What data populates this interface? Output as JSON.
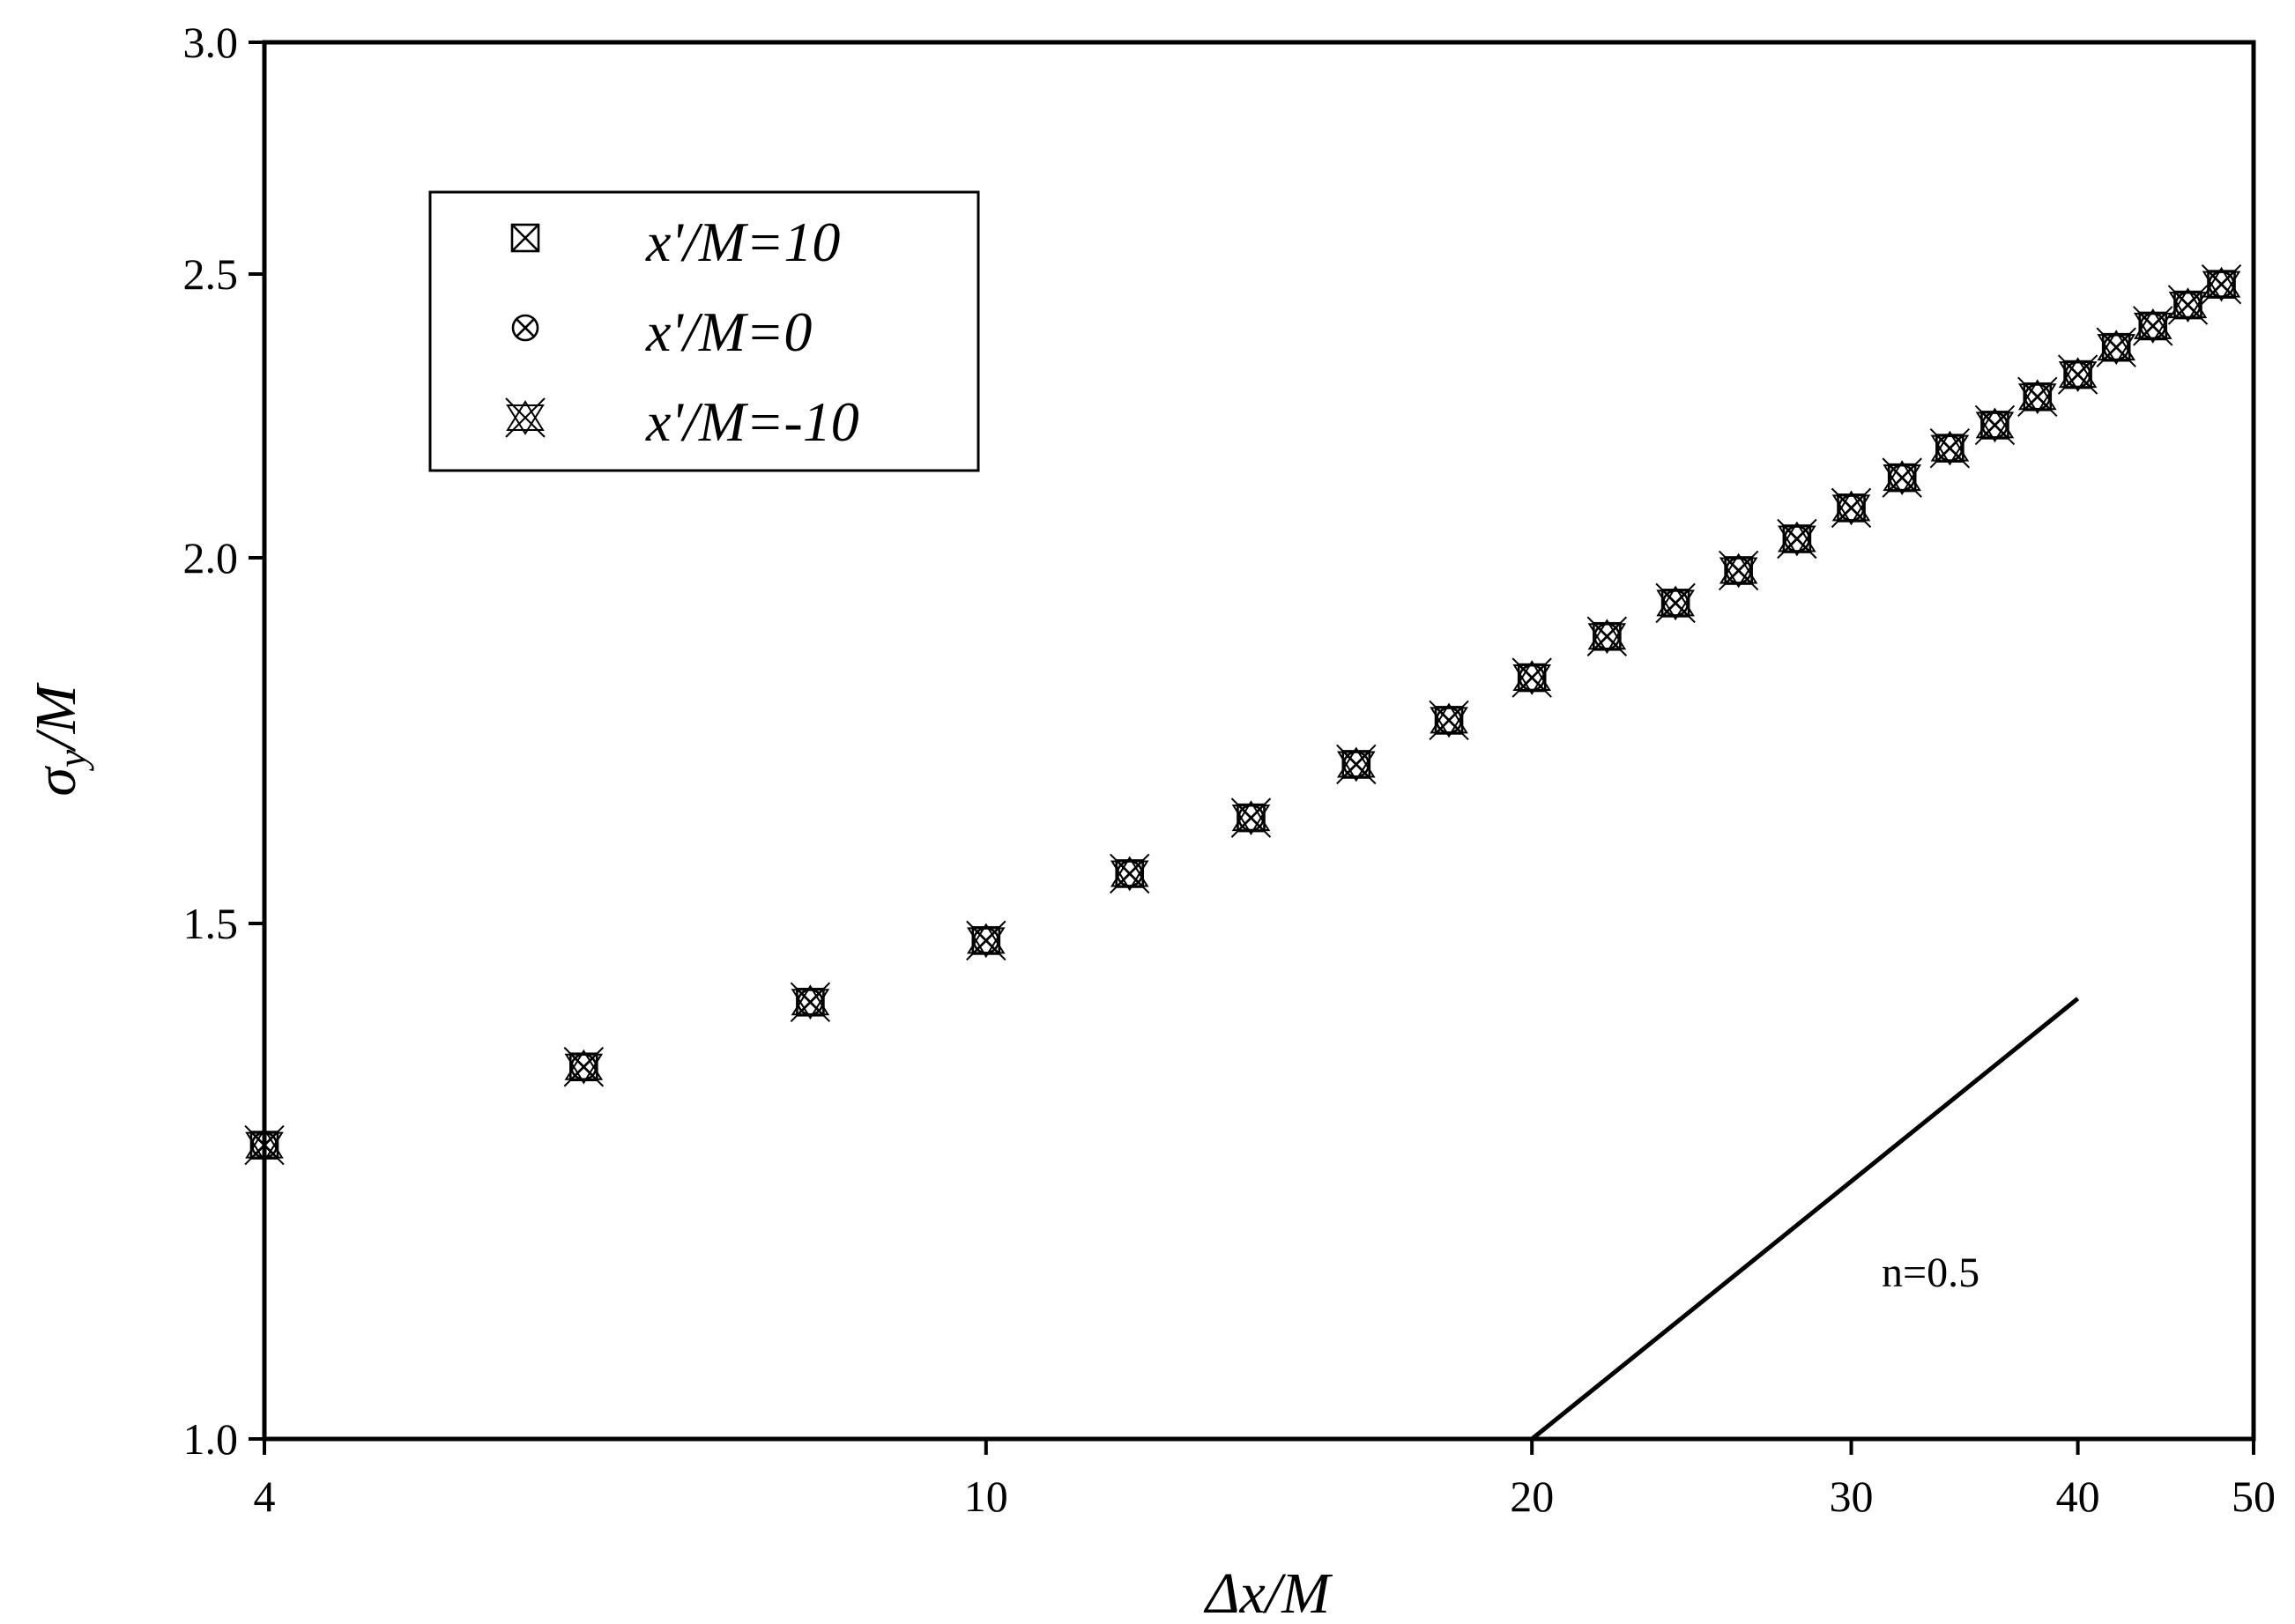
{
  "chart_data": {
    "type": "scatter",
    "xscale": "log",
    "yscale": "log",
    "xlim": [
      4,
      50
    ],
    "ylim": [
      1.0,
      3.0
    ],
    "xticks": [
      4,
      10,
      20,
      30,
      40,
      50
    ],
    "yticks": [
      1.0,
      1.5,
      2.0,
      2.5,
      3.0
    ],
    "xtick_labels": [
      "4",
      "10",
      "20",
      "30",
      "40",
      "50"
    ],
    "ytick_labels": [
      "1.0",
      "1.5",
      "2.0",
      "2.5",
      "3.0"
    ],
    "xlabel": "Δx/M",
    "ylabel_main": "σ",
    "ylabel_sub": "y",
    "ylabel_rest": "/M",
    "legend": {
      "position": "top-left"
    },
    "x": [
      4,
      6,
      8,
      10,
      12,
      14,
      16,
      18,
      20,
      22,
      24,
      26,
      28,
      30,
      32,
      34,
      36,
      38,
      40,
      42,
      44,
      46,
      48
    ],
    "series": [
      {
        "name": "x'/M=10",
        "marker": "boxed-x",
        "values": [
          1.26,
          1.34,
          1.41,
          1.48,
          1.56,
          1.63,
          1.7,
          1.76,
          1.82,
          1.88,
          1.93,
          1.98,
          2.03,
          2.08,
          2.13,
          2.18,
          2.22,
          2.27,
          2.31,
          2.36,
          2.4,
          2.44,
          2.48
        ]
      },
      {
        "name": "x'/M=0",
        "marker": "circled-x",
        "values": [
          1.26,
          1.34,
          1.41,
          1.48,
          1.56,
          1.63,
          1.7,
          1.76,
          1.82,
          1.88,
          1.93,
          1.98,
          2.03,
          2.08,
          2.13,
          2.18,
          2.22,
          2.27,
          2.31,
          2.36,
          2.4,
          2.44,
          2.48
        ]
      },
      {
        "name": "x'/M=-10",
        "marker": "star-x",
        "values": [
          1.26,
          1.34,
          1.41,
          1.48,
          1.56,
          1.63,
          1.7,
          1.76,
          1.82,
          1.88,
          1.93,
          1.98,
          2.03,
          2.08,
          2.13,
          2.18,
          2.22,
          2.27,
          2.31,
          2.36,
          2.4,
          2.44,
          2.48
        ]
      }
    ],
    "reference_line": {
      "label": "n=0.5",
      "x": [
        20,
        40
      ],
      "y": [
        1.0,
        1.414
      ]
    }
  }
}
